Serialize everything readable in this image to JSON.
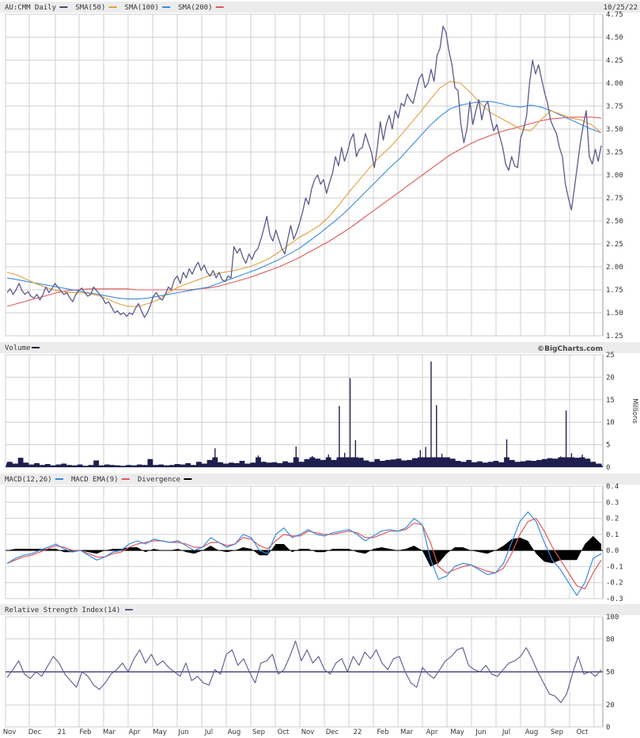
{
  "chart_data": [
    {
      "panel": "price",
      "type": "line",
      "title_parts": [
        {
          "text": "AU:CMM Daily",
          "color": "#4b4b7a"
        },
        {
          "text": "SMA(50)",
          "color": "#e0a040"
        },
        {
          "text": "SMA(100)",
          "color": "#3b8be0"
        },
        {
          "text": "SMA(200)",
          "color": "#e05a5a"
        }
      ],
      "date_label": "10/25/22",
      "ylim": [
        1.25,
        4.75
      ],
      "yticks": [
        "4.75",
        "4.50",
        "4.25",
        "4.00",
        "3.75",
        "3.50",
        "3.25",
        "3.00",
        "2.75",
        "2.50",
        "2.25",
        "2.00",
        "1.75",
        "1.50",
        "1.25"
      ],
      "series": [
        {
          "name": "AU:CMM Daily",
          "color": "#5a5a8c",
          "values": [
            1.72,
            1.76,
            1.7,
            1.75,
            1.82,
            1.74,
            1.7,
            1.73,
            1.68,
            1.66,
            1.7,
            1.64,
            1.7,
            1.78,
            1.72,
            1.76,
            1.82,
            1.78,
            1.74,
            1.7,
            1.72,
            1.66,
            1.62,
            1.7,
            1.74,
            1.77,
            1.72,
            1.68,
            1.7,
            1.78,
            1.74,
            1.7,
            1.66,
            1.6,
            1.62,
            1.56,
            1.5,
            1.52,
            1.48,
            1.5,
            1.46,
            1.5,
            1.48,
            1.55,
            1.6,
            1.52,
            1.45,
            1.5,
            1.58,
            1.68,
            1.72,
            1.66,
            1.64,
            1.7,
            1.78,
            1.75,
            1.86,
            1.9,
            1.82,
            1.94,
            1.88,
            1.98,
            1.92,
            2.0,
            2.05,
            1.96,
            2.02,
            1.94,
            1.9,
            1.96,
            1.88,
            1.94,
            1.86,
            1.84,
            1.9,
            1.88,
            2.22,
            2.15,
            2.2,
            2.1,
            2.04,
            2.14,
            2.08,
            2.16,
            2.2,
            2.3,
            2.42,
            2.55,
            2.35,
            2.28,
            2.4,
            2.3,
            2.2,
            2.14,
            2.3,
            2.45,
            2.3,
            2.38,
            2.48,
            2.6,
            2.75,
            2.68,
            2.85,
            2.95,
            3.0,
            2.9,
            2.95,
            2.8,
            2.92,
            3.02,
            3.2,
            3.1,
            3.3,
            3.15,
            3.25,
            3.38,
            3.45,
            3.2,
            3.28,
            3.3,
            3.45,
            3.35,
            3.25,
            3.08,
            3.3,
            3.58,
            3.38,
            3.55,
            3.65,
            3.5,
            3.7,
            3.62,
            3.78,
            3.75,
            3.88,
            3.82,
            3.78,
            3.92,
            4.05,
            4.1,
            3.95,
            4.0,
            4.15,
            4.02,
            4.3,
            4.38,
            4.62,
            4.55,
            4.35,
            4.2,
            3.95,
            3.92,
            3.55,
            3.35,
            3.5,
            3.8,
            3.55,
            3.7,
            3.82,
            3.6,
            3.75,
            3.8,
            3.62,
            3.48,
            3.55,
            3.42,
            3.3,
            3.12,
            3.05,
            3.2,
            3.1,
            3.08,
            3.4,
            3.5,
            3.65,
            4.0,
            4.25,
            4.1,
            4.2,
            4.05,
            3.9,
            3.78,
            3.6,
            3.52,
            3.45,
            3.3,
            3.2,
            2.9,
            2.75,
            2.62,
            2.85,
            3.1,
            3.35,
            3.55,
            3.7,
            3.2,
            3.12,
            3.28,
            3.15,
            3.32
          ]
        },
        {
          "name": "SMA(50)",
          "color": "#e0a040",
          "values": [
            1.94,
            1.91,
            1.86,
            1.81,
            1.77,
            1.74,
            1.72,
            1.72,
            1.71,
            1.69,
            1.65,
            1.6,
            1.57,
            1.57,
            1.6,
            1.64,
            1.72,
            1.78,
            1.82,
            1.86,
            1.9,
            1.93,
            1.95,
            1.97,
            2.0,
            2.04,
            2.09,
            2.16,
            2.24,
            2.32,
            2.38,
            2.45,
            2.55,
            2.68,
            2.82,
            2.95,
            3.08,
            3.2,
            3.3,
            3.42,
            3.55,
            3.68,
            3.82,
            3.95,
            4.02,
            4.0,
            3.9,
            3.78,
            3.68,
            3.62,
            3.56,
            3.5,
            3.48,
            3.6,
            3.7,
            3.66,
            3.62,
            3.6,
            3.55,
            3.46
          ]
        },
        {
          "name": "SMA(100)",
          "color": "#3b8be0",
          "values": [
            1.88,
            1.86,
            1.84,
            1.82,
            1.8,
            1.78,
            1.76,
            1.74,
            1.72,
            1.7,
            1.68,
            1.66,
            1.65,
            1.65,
            1.66,
            1.68,
            1.7,
            1.72,
            1.74,
            1.76,
            1.78,
            1.82,
            1.86,
            1.9,
            1.94,
            1.98,
            2.03,
            2.08,
            2.14,
            2.2,
            2.28,
            2.36,
            2.45,
            2.54,
            2.64,
            2.75,
            2.86,
            2.97,
            3.08,
            3.18,
            3.3,
            3.42,
            3.54,
            3.64,
            3.72,
            3.76,
            3.78,
            3.8,
            3.8,
            3.78,
            3.75,
            3.74,
            3.76,
            3.74,
            3.7,
            3.65,
            3.6,
            3.55,
            3.5,
            3.46
          ]
        },
        {
          "name": "SMA(200)",
          "color": "#e05a5a",
          "values": [
            1.57,
            1.6,
            1.63,
            1.66,
            1.69,
            1.72,
            1.74,
            1.75,
            1.76,
            1.76,
            1.76,
            1.76,
            1.76,
            1.75,
            1.75,
            1.75,
            1.75,
            1.75,
            1.75,
            1.76,
            1.77,
            1.79,
            1.82,
            1.85,
            1.88,
            1.92,
            1.96,
            2.0,
            2.05,
            2.1,
            2.16,
            2.22,
            2.28,
            2.35,
            2.42,
            2.5,
            2.58,
            2.66,
            2.74,
            2.82,
            2.9,
            2.98,
            3.06,
            3.14,
            3.22,
            3.28,
            3.34,
            3.39,
            3.43,
            3.47,
            3.5,
            3.53,
            3.56,
            3.59,
            3.61,
            3.62,
            3.63,
            3.63,
            3.63,
            3.62
          ]
        }
      ]
    },
    {
      "panel": "volume",
      "type": "bar",
      "title": "Volume",
      "ylabel": "Millions",
      "ylim": [
        0,
        25
      ],
      "yticks": [
        "25",
        "20",
        "15",
        "10",
        "5",
        "0"
      ],
      "watermark": "©BigCharts.com",
      "color": "#1f1f4f",
      "values": [
        1.2,
        0.8,
        2.1,
        1.0,
        0.6,
        0.9,
        0.5,
        0.7,
        0.4,
        0.6,
        0.8,
        0.5,
        0.4,
        0.6,
        0.3,
        0.5,
        1.5,
        0.4,
        0.6,
        0.5,
        0.4,
        0.3,
        0.5,
        0.4,
        0.6,
        0.5,
        1.8,
        0.5,
        0.6,
        0.4,
        0.5,
        0.7,
        0.6,
        0.9,
        0.5,
        1.2,
        0.8,
        1.6,
        4.2,
        1.1,
        0.8,
        1.0,
        0.9,
        1.4,
        0.8,
        1.0,
        2.6,
        1.2,
        1.0,
        1.1,
        0.9,
        1.3,
        1.0,
        4.6,
        1.2,
        1.8,
        2.5,
        1.9,
        1.6,
        2.8,
        1.6,
        13.6,
        3.2,
        19.8,
        6.0,
        2.1,
        1.5,
        1.2,
        1.8,
        1.4,
        1.6,
        1.7,
        1.9,
        1.5,
        1.6,
        2.0,
        3.8,
        4.5,
        23.5,
        13.8,
        3.0,
        2.2,
        1.9,
        1.4,
        1.2,
        1.6,
        1.1,
        1.3,
        1.0,
        1.2,
        1.4,
        1.1,
        6.2,
        1.6,
        1.2,
        1.3,
        1.5,
        1.4,
        1.6,
        1.8,
        2.0,
        1.9,
        2.4,
        12.6,
        3.1,
        2.1,
        2.8,
        1.9,
        1.2,
        0.8
      ]
    },
    {
      "panel": "macd",
      "type": "line",
      "title_parts": [
        {
          "text": "MACD(12,26)",
          "color": "#3b8be0"
        },
        {
          "text": "MACD EMA(9)",
          "color": "#e05a5a"
        },
        {
          "text": "Divergence",
          "color": "#000000"
        }
      ],
      "ylim": [
        -0.3,
        0.4
      ],
      "yticks": [
        "0.4",
        "0.3",
        "0.2",
        "0.1",
        "0.0",
        "-0.1",
        "-0.2",
        "-0.3"
      ],
      "series": [
        {
          "name": "MACD(12,26)",
          "color": "#3b8be0",
          "values": [
            -0.08,
            -0.05,
            -0.03,
            -0.02,
            0.0,
            0.02,
            0.04,
            0.01,
            -0.01,
            0.0,
            -0.03,
            -0.06,
            -0.04,
            -0.01,
            0.0,
            0.04,
            0.06,
            0.04,
            0.07,
            0.06,
            0.05,
            0.06,
            0.03,
            0.0,
            0.02,
            0.08,
            0.05,
            0.02,
            0.04,
            0.1,
            0.08,
            0.0,
            -0.02,
            0.1,
            0.14,
            0.08,
            0.1,
            0.13,
            0.1,
            0.09,
            0.11,
            0.12,
            0.13,
            0.1,
            0.06,
            0.09,
            0.12,
            0.13,
            0.12,
            0.14,
            0.2,
            0.16,
            -0.05,
            -0.18,
            -0.16,
            -0.1,
            -0.08,
            -0.09,
            -0.12,
            -0.15,
            -0.14,
            -0.08,
            0.05,
            0.18,
            0.24,
            0.18,
            0.05,
            -0.06,
            -0.12,
            -0.2,
            -0.28,
            -0.2,
            -0.05,
            -0.02
          ]
        },
        {
          "name": "MACD EMA(9)",
          "color": "#e05a5a",
          "values": [
            -0.08,
            -0.06,
            -0.04,
            -0.03,
            -0.01,
            0.01,
            0.03,
            0.02,
            0.0,
            0.0,
            -0.02,
            -0.04,
            -0.04,
            -0.02,
            -0.01,
            0.02,
            0.04,
            0.05,
            0.06,
            0.06,
            0.05,
            0.05,
            0.04,
            0.02,
            0.02,
            0.05,
            0.05,
            0.03,
            0.04,
            0.08,
            0.07,
            0.03,
            0.01,
            0.06,
            0.1,
            0.09,
            0.09,
            0.12,
            0.11,
            0.1,
            0.1,
            0.11,
            0.12,
            0.11,
            0.08,
            0.08,
            0.1,
            0.12,
            0.12,
            0.13,
            0.17,
            0.16,
            0.05,
            -0.1,
            -0.14,
            -0.12,
            -0.1,
            -0.09,
            -0.11,
            -0.13,
            -0.14,
            -0.11,
            -0.02,
            0.1,
            0.18,
            0.2,
            0.12,
            0.02,
            -0.06,
            -0.14,
            -0.22,
            -0.24,
            -0.14,
            -0.06
          ]
        },
        {
          "name": "Divergence",
          "color": "#000000",
          "type": "area",
          "values": [
            0.0,
            0.01,
            0.01,
            0.01,
            0.01,
            0.01,
            0.01,
            -0.01,
            -0.01,
            0.0,
            -0.01,
            -0.02,
            0.0,
            0.01,
            0.01,
            0.02,
            0.02,
            -0.01,
            0.01,
            0.0,
            0.0,
            0.01,
            -0.01,
            -0.02,
            0.0,
            0.03,
            0.0,
            -0.01,
            0.0,
            0.02,
            0.01,
            -0.03,
            -0.03,
            0.04,
            0.04,
            -0.01,
            0.01,
            0.01,
            -0.01,
            -0.01,
            0.01,
            0.01,
            0.01,
            -0.01,
            -0.02,
            0.01,
            0.02,
            0.01,
            0.0,
            0.01,
            0.03,
            0.0,
            -0.1,
            -0.08,
            -0.02,
            0.02,
            0.02,
            0.0,
            -0.01,
            -0.02,
            0.0,
            0.03,
            0.07,
            0.08,
            0.06,
            -0.02,
            -0.07,
            -0.08,
            -0.06,
            -0.06,
            -0.06,
            0.04,
            0.09,
            0.04
          ]
        }
      ]
    },
    {
      "panel": "rsi",
      "type": "line",
      "title": "Relative Strength Index(14)",
      "color": "#5a5a8c",
      "ylim": [
        0,
        100
      ],
      "yticks": [
        "100",
        "80",
        "50",
        "20",
        "0"
      ],
      "values": [
        45,
        52,
        60,
        48,
        44,
        50,
        46,
        55,
        64,
        58,
        48,
        42,
        36,
        50,
        46,
        38,
        34,
        40,
        48,
        52,
        58,
        50,
        62,
        70,
        58,
        66,
        56,
        60,
        54,
        50,
        46,
        58,
        42,
        46,
        40,
        38,
        52,
        48,
        66,
        70,
        56,
        62,
        50,
        40,
        58,
        60,
        66,
        48,
        52,
        64,
        78,
        60,
        70,
        58,
        64,
        52,
        48,
        58,
        62,
        50,
        64,
        56,
        68,
        62,
        70,
        58,
        52,
        62,
        64,
        50,
        40,
        36,
        54,
        48,
        44,
        52,
        60,
        64,
        70,
        72,
        56,
        52,
        50,
        56,
        48,
        46,
        52,
        58,
        60,
        64,
        72,
        62,
        50,
        40,
        30,
        28,
        22,
        30,
        48,
        64,
        48,
        50,
        46,
        52
      ]
    }
  ],
  "x_axis": {
    "labels": [
      "Nov",
      "Dec",
      "21",
      "Feb",
      "Mar",
      "Apr",
      "May",
      "Jun",
      "Jul",
      "Aug",
      "Sep",
      "Oct",
      "Nov",
      "Dec",
      "22",
      "Feb",
      "Mar",
      "Apr",
      "May",
      "Jun",
      "Jul",
      "Aug",
      "Sep",
      "Oct"
    ]
  }
}
